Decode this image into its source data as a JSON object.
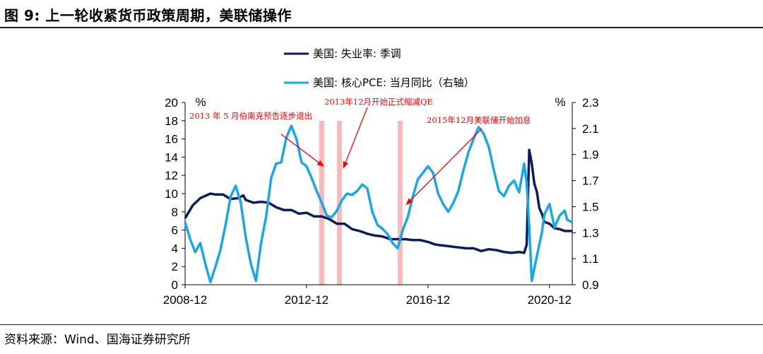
{
  "title": "图 9:  上一轮收紧货币政策周期，美联储操作",
  "source": "资料来源：Wind、国海证券研究所",
  "colors": {
    "unemployment": "#0b1d5e",
    "pce": "#1aa7e6",
    "band": "#f7b9b9",
    "annotation": "#ff0000"
  },
  "chart_data": {
    "type": "line",
    "legend_placement": "top-center",
    "grid": false,
    "left_axis": {
      "unit": "%",
      "ylim": [
        0,
        20
      ],
      "ticks": [
        0,
        2,
        4,
        6,
        8,
        10,
        12,
        14,
        16,
        18,
        20
      ]
    },
    "right_axis": {
      "unit": "%",
      "ylim": [
        0.9,
        2.3
      ],
      "ticks": [
        0.9,
        1.1,
        1.3,
        1.5,
        1.7,
        1.9,
        2.1,
        2.3
      ]
    },
    "x_ticks": [
      "2008-12",
      "2012-12",
      "2016-12",
      "2020-12"
    ],
    "x_range": [
      "2008-12",
      "2021-09"
    ],
    "series": [
      {
        "name": "美国: 失业率: 季调",
        "axis": "left",
        "points": [
          [
            "2008-12",
            7.3
          ],
          [
            "2009-03",
            8.7
          ],
          [
            "2009-06",
            9.5
          ],
          [
            "2009-10",
            10.0
          ],
          [
            "2009-12",
            9.9
          ],
          [
            "2010-03",
            9.9
          ],
          [
            "2010-06",
            9.4
          ],
          [
            "2010-09",
            9.5
          ],
          [
            "2010-11",
            9.8
          ],
          [
            "2010-12",
            9.3
          ],
          [
            "2011-03",
            9.0
          ],
          [
            "2011-06",
            9.1
          ],
          [
            "2011-09",
            9.0
          ],
          [
            "2011-12",
            8.5
          ],
          [
            "2012-03",
            8.2
          ],
          [
            "2012-06",
            8.2
          ],
          [
            "2012-09",
            7.8
          ],
          [
            "2012-12",
            7.9
          ],
          [
            "2013-03",
            7.5
          ],
          [
            "2013-06",
            7.5
          ],
          [
            "2013-09",
            7.2
          ],
          [
            "2013-12",
            6.7
          ],
          [
            "2014-03",
            6.7
          ],
          [
            "2014-06",
            6.1
          ],
          [
            "2014-09",
            5.9
          ],
          [
            "2014-12",
            5.6
          ],
          [
            "2015-03",
            5.4
          ],
          [
            "2015-06",
            5.3
          ],
          [
            "2015-09",
            5.0
          ],
          [
            "2015-12",
            5.0
          ],
          [
            "2016-03",
            5.0
          ],
          [
            "2016-06",
            4.9
          ],
          [
            "2016-09",
            4.9
          ],
          [
            "2016-12",
            4.7
          ],
          [
            "2017-03",
            4.4
          ],
          [
            "2017-06",
            4.3
          ],
          [
            "2017-09",
            4.2
          ],
          [
            "2017-12",
            4.1
          ],
          [
            "2018-03",
            4.0
          ],
          [
            "2018-06",
            4.0
          ],
          [
            "2018-09",
            3.7
          ],
          [
            "2018-12",
            3.9
          ],
          [
            "2019-03",
            3.8
          ],
          [
            "2019-06",
            3.6
          ],
          [
            "2019-09",
            3.5
          ],
          [
            "2019-12",
            3.6
          ],
          [
            "2020-02",
            3.5
          ],
          [
            "2020-03",
            4.4
          ],
          [
            "2020-04",
            14.8
          ],
          [
            "2020-05",
            13.3
          ],
          [
            "2020-06",
            11.1
          ],
          [
            "2020-07",
            10.2
          ],
          [
            "2020-08",
            8.4
          ],
          [
            "2020-09",
            7.8
          ],
          [
            "2020-10",
            6.9
          ],
          [
            "2020-12",
            6.7
          ],
          [
            "2021-02",
            6.2
          ],
          [
            "2021-04",
            6.1
          ],
          [
            "2021-06",
            5.9
          ],
          [
            "2021-09",
            5.9
          ]
        ]
      },
      {
        "name": "美国: 核心PCE: 当月同比（右轴）",
        "axis": "right",
        "points": [
          [
            "2008-12",
            1.38
          ],
          [
            "2009-02",
            1.25
          ],
          [
            "2009-04",
            1.15
          ],
          [
            "2009-06",
            1.22
          ],
          [
            "2009-08",
            1.06
          ],
          [
            "2009-10",
            0.92
          ],
          [
            "2009-12",
            1.04
          ],
          [
            "2010-02",
            1.17
          ],
          [
            "2010-04",
            1.36
          ],
          [
            "2010-06",
            1.58
          ],
          [
            "2010-08",
            1.66
          ],
          [
            "2010-10",
            1.53
          ],
          [
            "2010-12",
            1.26
          ],
          [
            "2011-02",
            1.06
          ],
          [
            "2011-04",
            0.93
          ],
          [
            "2011-06",
            1.22
          ],
          [
            "2011-08",
            1.42
          ],
          [
            "2011-10",
            1.72
          ],
          [
            "2011-12",
            1.83
          ],
          [
            "2012-02",
            1.84
          ],
          [
            "2012-04",
            2.03
          ],
          [
            "2012-06",
            2.12
          ],
          [
            "2012-08",
            2.02
          ],
          [
            "2012-10",
            1.84
          ],
          [
            "2012-12",
            1.81
          ],
          [
            "2013-02",
            1.72
          ],
          [
            "2013-04",
            1.62
          ],
          [
            "2013-06",
            1.53
          ],
          [
            "2013-08",
            1.43
          ],
          [
            "2013-10",
            1.42
          ],
          [
            "2013-12",
            1.47
          ],
          [
            "2014-02",
            1.55
          ],
          [
            "2014-04",
            1.6
          ],
          [
            "2014-06",
            1.59
          ],
          [
            "2014-08",
            1.62
          ],
          [
            "2014-10",
            1.67
          ],
          [
            "2014-12",
            1.64
          ],
          [
            "2015-02",
            1.46
          ],
          [
            "2015-04",
            1.36
          ],
          [
            "2015-06",
            1.33
          ],
          [
            "2015-08",
            1.29
          ],
          [
            "2015-10",
            1.22
          ],
          [
            "2015-12",
            1.18
          ],
          [
            "2016-02",
            1.32
          ],
          [
            "2016-04",
            1.42
          ],
          [
            "2016-06",
            1.58
          ],
          [
            "2016-08",
            1.71
          ],
          [
            "2016-10",
            1.76
          ],
          [
            "2016-12",
            1.81
          ],
          [
            "2017-02",
            1.76
          ],
          [
            "2017-04",
            1.6
          ],
          [
            "2017-06",
            1.52
          ],
          [
            "2017-08",
            1.46
          ],
          [
            "2017-10",
            1.53
          ],
          [
            "2017-12",
            1.62
          ],
          [
            "2018-02",
            1.78
          ],
          [
            "2018-04",
            1.92
          ],
          [
            "2018-06",
            2.02
          ],
          [
            "2018-08",
            2.11
          ],
          [
            "2018-10",
            2.06
          ],
          [
            "2018-12",
            1.96
          ],
          [
            "2019-02",
            1.78
          ],
          [
            "2019-04",
            1.62
          ],
          [
            "2019-06",
            1.58
          ],
          [
            "2019-08",
            1.66
          ],
          [
            "2019-10",
            1.7
          ],
          [
            "2019-12",
            1.61
          ],
          [
            "2020-02",
            1.83
          ],
          [
            "2020-03",
            1.68
          ],
          [
            "2020-04",
            1.35
          ],
          [
            "2020-05",
            0.93
          ],
          [
            "2020-07",
            1.12
          ],
          [
            "2020-09",
            1.3
          ],
          [
            "2020-10",
            1.44
          ],
          [
            "2020-12",
            1.52
          ],
          [
            "2021-02",
            1.34
          ],
          [
            "2021-04",
            1.43
          ],
          [
            "2021-06",
            1.47
          ],
          [
            "2021-07",
            1.4
          ],
          [
            "2021-09",
            1.38
          ]
        ]
      }
    ],
    "bands": [
      {
        "start": "2013-05",
        "end": "2013-06"
      },
      {
        "start": "2013-12",
        "end": "2014-01"
      },
      {
        "start": "2015-12",
        "end": "2016-01"
      }
    ],
    "annotations": [
      {
        "text": "2013 年 5 月伯南克预告逐步退出",
        "target_date": "2013-05",
        "target_value": 13.0
      },
      {
        "text": "2013年12月开始正式缩减QE",
        "target_date": "2013-12",
        "target_value": 12.8
      },
      {
        "text": "2015年12月美联储开始加息",
        "target_date": "2015-12",
        "target_value": 8.8
      }
    ]
  }
}
